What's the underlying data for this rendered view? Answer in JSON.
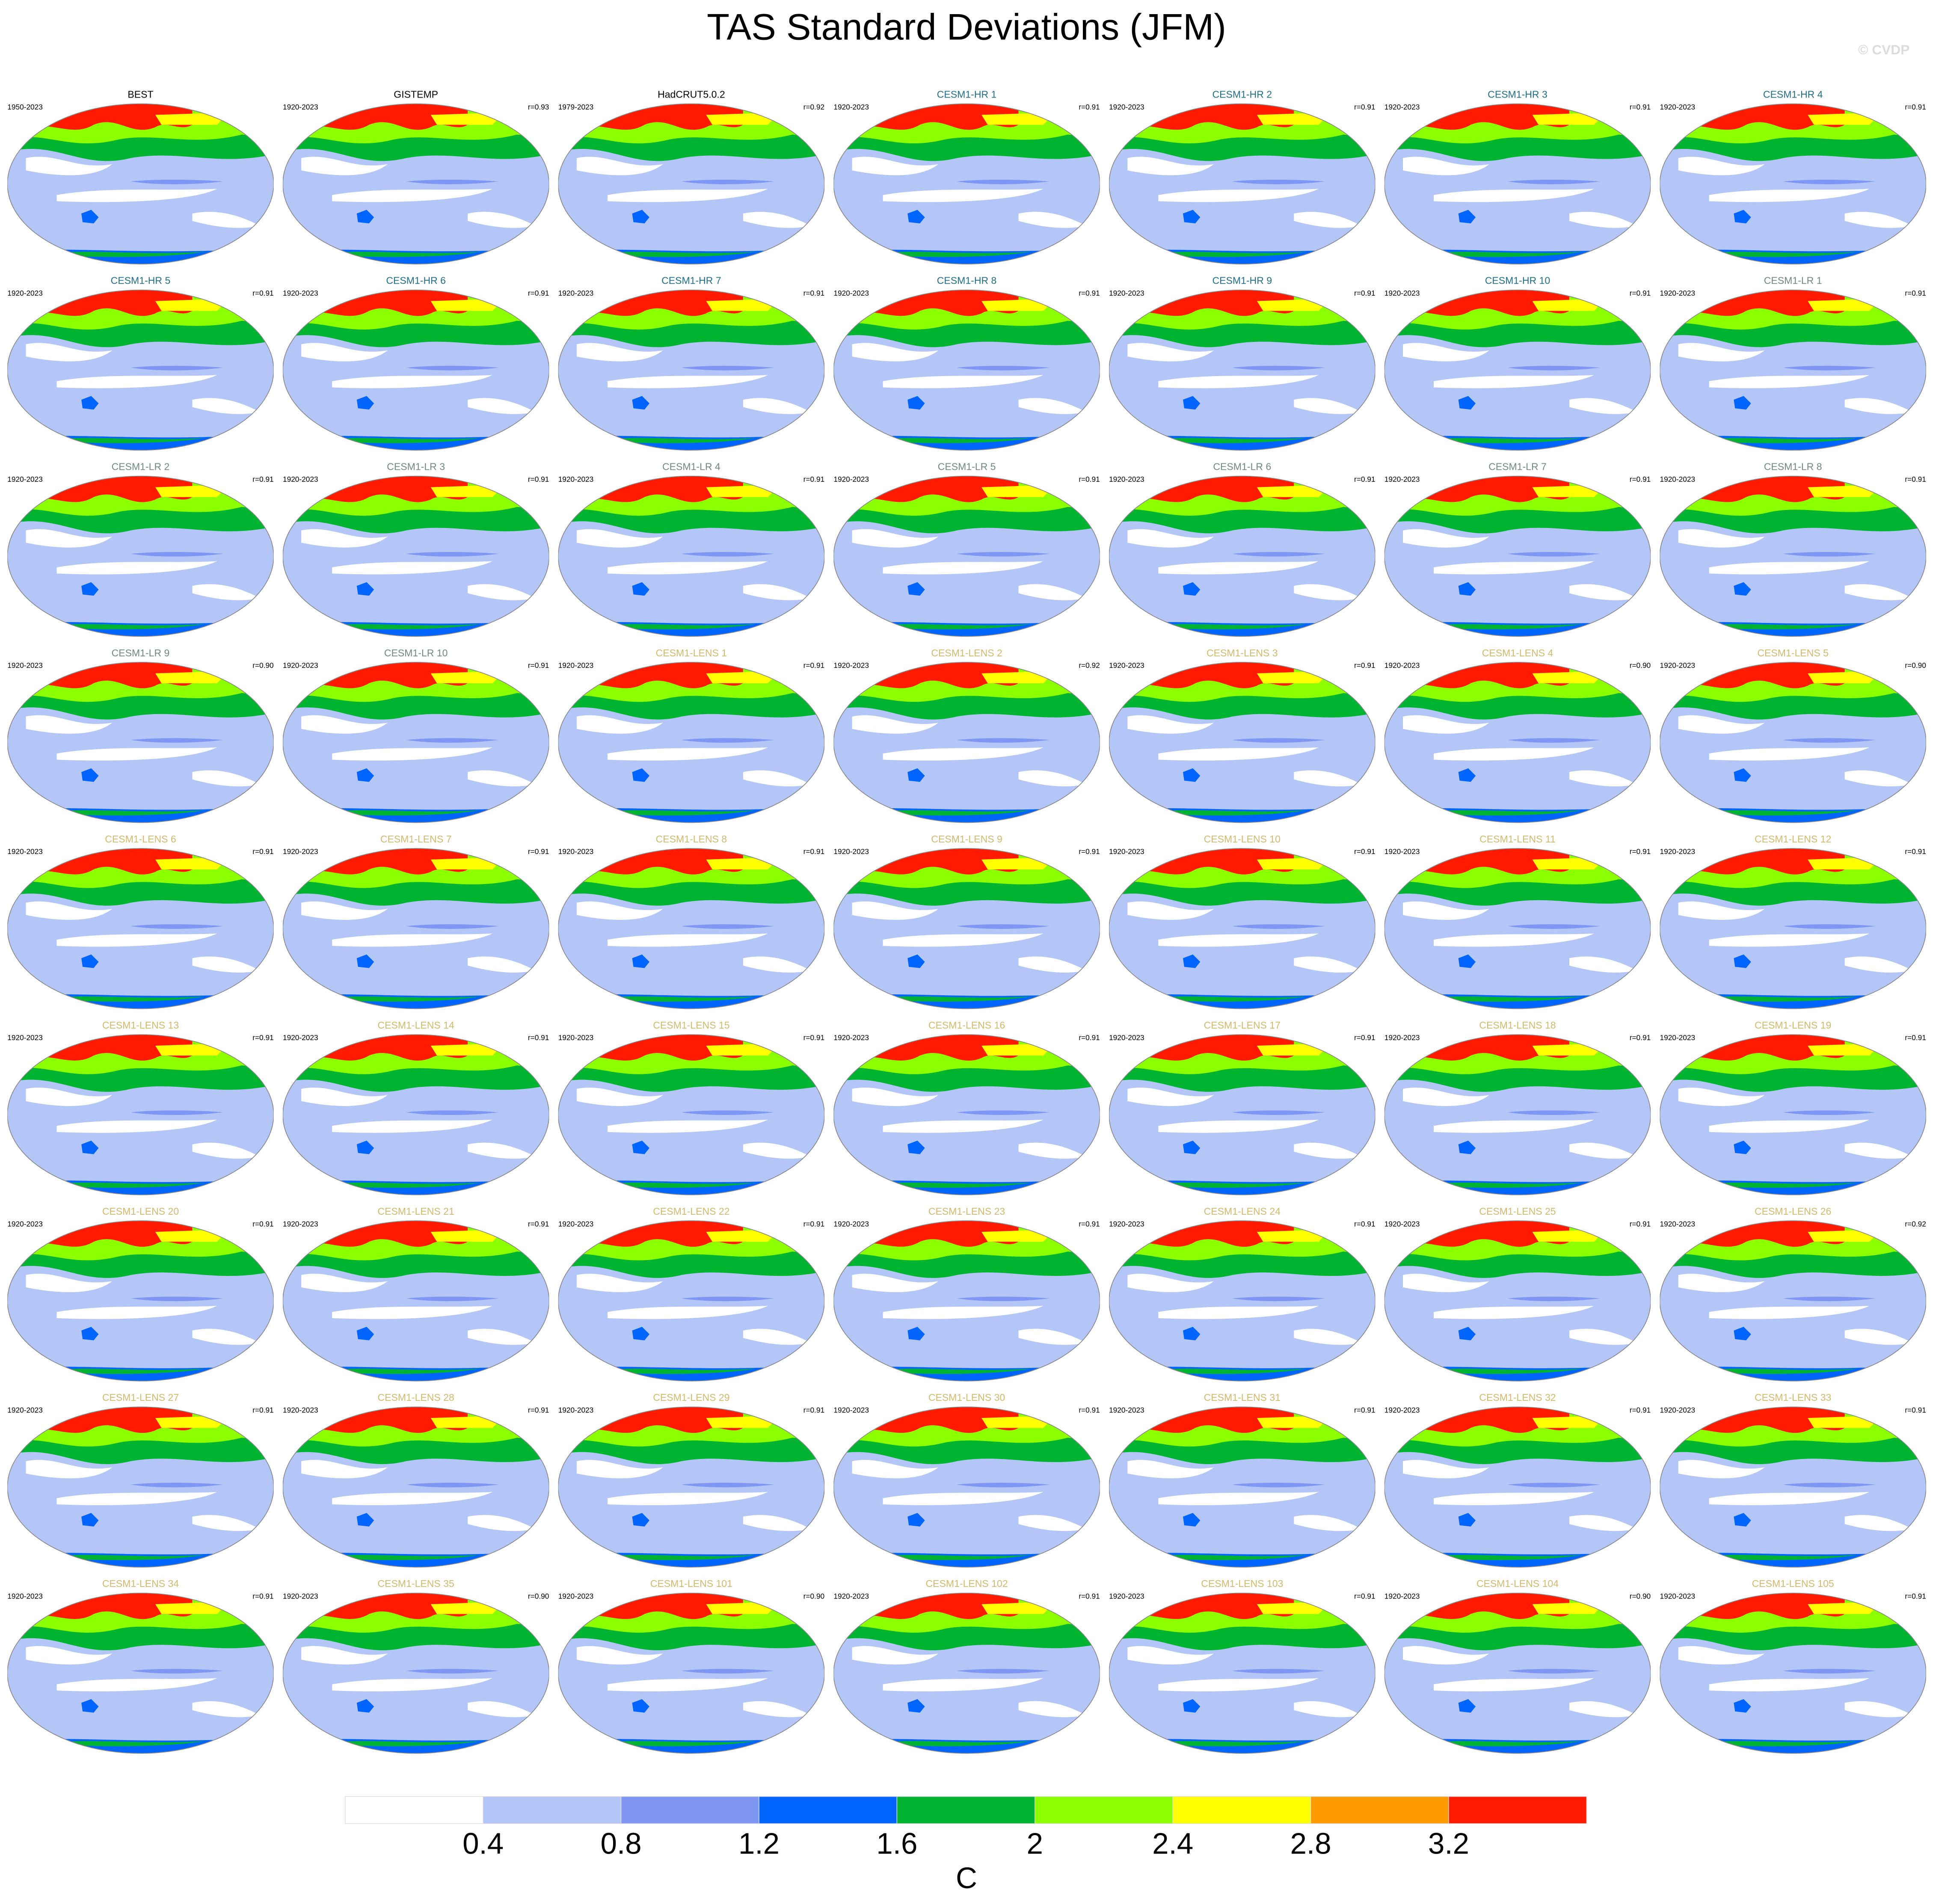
{
  "title": "TAS Standard Deviations (JFM)",
  "credit": "© CVDP",
  "panels": [
    {
      "name": "BEST",
      "years": "1950-2023",
      "color": "#000000"
    },
    {
      "name": "GISTEMP",
      "years": "1920-2023",
      "r": "r=0.93",
      "color": "#000000"
    },
    {
      "name": "HadCRUT5.0.2",
      "years": "1979-2023",
      "r": "r=0.92",
      "color": "#000000"
    },
    {
      "name": "CESM1-HR 1",
      "years": "1920-2023",
      "r": "r=0.91",
      "color": "#1f6f8b"
    },
    {
      "name": "CESM1-HR 2",
      "years": "1920-2023",
      "r": "r=0.91",
      "color": "#1f6f8b"
    },
    {
      "name": "CESM1-HR 3",
      "years": "1920-2023",
      "r": "r=0.91",
      "color": "#1f6f8b"
    },
    {
      "name": "CESM1-HR 4",
      "years": "1920-2023",
      "r": "r=0.91",
      "color": "#1f6f8b"
    },
    {
      "name": "CESM1-HR 5",
      "years": "1920-2023",
      "r": "r=0.91",
      "color": "#1f6f8b"
    },
    {
      "name": "CESM1-HR 6",
      "years": "1920-2023",
      "r": "r=0.91",
      "color": "#1f6f8b"
    },
    {
      "name": "CESM1-HR 7",
      "years": "1920-2023",
      "r": "r=0.91",
      "color": "#1f6f8b"
    },
    {
      "name": "CESM1-HR 8",
      "years": "1920-2023",
      "r": "r=0.91",
      "color": "#1f6f8b"
    },
    {
      "name": "CESM1-HR 9",
      "years": "1920-2023",
      "r": "r=0.91",
      "color": "#1f6f8b"
    },
    {
      "name": "CESM1-HR 10",
      "years": "1920-2023",
      "r": "r=0.91",
      "color": "#1f6f8b"
    },
    {
      "name": "CESM1-LR 1",
      "years": "1920-2023",
      "r": "r=0.91",
      "color": "#6f8a7c"
    },
    {
      "name": "CESM1-LR 2",
      "years": "1920-2023",
      "r": "r=0.91",
      "color": "#6f8a7c"
    },
    {
      "name": "CESM1-LR 3",
      "years": "1920-2023",
      "r": "r=0.91",
      "color": "#6f8a7c"
    },
    {
      "name": "CESM1-LR 4",
      "years": "1920-2023",
      "r": "r=0.91",
      "color": "#6f8a7c"
    },
    {
      "name": "CESM1-LR 5",
      "years": "1920-2023",
      "r": "r=0.91",
      "color": "#6f8a7c"
    },
    {
      "name": "CESM1-LR 6",
      "years": "1920-2023",
      "r": "r=0.91",
      "color": "#6f8a7c"
    },
    {
      "name": "CESM1-LR 7",
      "years": "1920-2023",
      "r": "r=0.91",
      "color": "#6f8a7c"
    },
    {
      "name": "CESM1-LR 8",
      "years": "1920-2023",
      "r": "r=0.91",
      "color": "#6f8a7c"
    },
    {
      "name": "CESM1-LR 9",
      "years": "1920-2023",
      "r": "r=0.90",
      "color": "#6f8a7c"
    },
    {
      "name": "CESM1-LR 10",
      "years": "1920-2023",
      "r": "r=0.91",
      "color": "#6f8a7c"
    },
    {
      "name": "CESM1-LENS 1",
      "years": "1920-2023",
      "r": "r=0.91",
      "color": "#d4b96a"
    },
    {
      "name": "CESM1-LENS 2",
      "years": "1920-2023",
      "r": "r=0.92",
      "color": "#d4b96a"
    },
    {
      "name": "CESM1-LENS 3",
      "years": "1920-2023",
      "r": "r=0.91",
      "color": "#d4b96a"
    },
    {
      "name": "CESM1-LENS 4",
      "years": "1920-2023",
      "r": "r=0.90",
      "color": "#d4b96a"
    },
    {
      "name": "CESM1-LENS 5",
      "years": "1920-2023",
      "r": "r=0.90",
      "color": "#d4b96a"
    },
    {
      "name": "CESM1-LENS 6",
      "years": "1920-2023",
      "r": "r=0.91",
      "color": "#d4b96a"
    },
    {
      "name": "CESM1-LENS 7",
      "years": "1920-2023",
      "r": "r=0.91",
      "color": "#d4b96a"
    },
    {
      "name": "CESM1-LENS 8",
      "years": "1920-2023",
      "r": "r=0.91",
      "color": "#d4b96a"
    },
    {
      "name": "CESM1-LENS 9",
      "years": "1920-2023",
      "r": "r=0.91",
      "color": "#d4b96a"
    },
    {
      "name": "CESM1-LENS 10",
      "years": "1920-2023",
      "r": "r=0.91",
      "color": "#d4b96a"
    },
    {
      "name": "CESM1-LENS 11",
      "years": "1920-2023",
      "r": "r=0.91",
      "color": "#d4b96a"
    },
    {
      "name": "CESM1-LENS 12",
      "years": "1920-2023",
      "r": "r=0.91",
      "color": "#d4b96a"
    },
    {
      "name": "CESM1-LENS 13",
      "years": "1920-2023",
      "r": "r=0.91",
      "color": "#d4b96a"
    },
    {
      "name": "CESM1-LENS 14",
      "years": "1920-2023",
      "r": "r=0.91",
      "color": "#d4b96a"
    },
    {
      "name": "CESM1-LENS 15",
      "years": "1920-2023",
      "r": "r=0.91",
      "color": "#d4b96a"
    },
    {
      "name": "CESM1-LENS 16",
      "years": "1920-2023",
      "r": "r=0.91",
      "color": "#d4b96a"
    },
    {
      "name": "CESM1-LENS 17",
      "years": "1920-2023",
      "r": "r=0.91",
      "color": "#d4b96a"
    },
    {
      "name": "CESM1-LENS 18",
      "years": "1920-2023",
      "r": "r=0.91",
      "color": "#d4b96a"
    },
    {
      "name": "CESM1-LENS 19",
      "years": "1920-2023",
      "r": "r=0.91",
      "color": "#d4b96a"
    },
    {
      "name": "CESM1-LENS 20",
      "years": "1920-2023",
      "r": "r=0.91",
      "color": "#d4b96a"
    },
    {
      "name": "CESM1-LENS 21",
      "years": "1920-2023",
      "r": "r=0.91",
      "color": "#d4b96a"
    },
    {
      "name": "CESM1-LENS 22",
      "years": "1920-2023",
      "r": "r=0.91",
      "color": "#d4b96a"
    },
    {
      "name": "CESM1-LENS 23",
      "years": "1920-2023",
      "r": "r=0.91",
      "color": "#d4b96a"
    },
    {
      "name": "CESM1-LENS 24",
      "years": "1920-2023",
      "r": "r=0.91",
      "color": "#d4b96a"
    },
    {
      "name": "CESM1-LENS 25",
      "years": "1920-2023",
      "r": "r=0.91",
      "color": "#d4b96a"
    },
    {
      "name": "CESM1-LENS 26",
      "years": "1920-2023",
      "r": "r=0.92",
      "color": "#d4b96a"
    },
    {
      "name": "CESM1-LENS 27",
      "years": "1920-2023",
      "r": "r=0.91",
      "color": "#d4b96a"
    },
    {
      "name": "CESM1-LENS 28",
      "years": "1920-2023",
      "r": "r=0.91",
      "color": "#d4b96a"
    },
    {
      "name": "CESM1-LENS 29",
      "years": "1920-2023",
      "r": "r=0.91",
      "color": "#d4b96a"
    },
    {
      "name": "CESM1-LENS 30",
      "years": "1920-2023",
      "r": "r=0.91",
      "color": "#d4b96a"
    },
    {
      "name": "CESM1-LENS 31",
      "years": "1920-2023",
      "r": "r=0.91",
      "color": "#d4b96a"
    },
    {
      "name": "CESM1-LENS 32",
      "years": "1920-2023",
      "r": "r=0.91",
      "color": "#d4b96a"
    },
    {
      "name": "CESM1-LENS 33",
      "years": "1920-2023",
      "r": "r=0.91",
      "color": "#d4b96a"
    },
    {
      "name": "CESM1-LENS 34",
      "years": "1920-2023",
      "r": "r=0.91",
      "color": "#d4b96a"
    },
    {
      "name": "CESM1-LENS 35",
      "years": "1920-2023",
      "r": "r=0.90",
      "color": "#d4b96a"
    },
    {
      "name": "CESM1-LENS 101",
      "years": "1920-2023",
      "r": "r=0.90",
      "color": "#d4b96a"
    },
    {
      "name": "CESM1-LENS 102",
      "years": "1920-2023",
      "r": "r=0.91",
      "color": "#d4b96a"
    },
    {
      "name": "CESM1-LENS 103",
      "years": "1920-2023",
      "r": "r=0.91",
      "color": "#d4b96a"
    },
    {
      "name": "CESM1-LENS 104",
      "years": "1920-2023",
      "r": "r=0.90",
      "color": "#d4b96a"
    },
    {
      "name": "CESM1-LENS 105",
      "years": "1920-2023",
      "r": "r=0.91",
      "color": "#d4b96a"
    }
  ],
  "colorbar": {
    "levels": [
      0.4,
      0.8,
      1.2,
      1.6,
      2,
      2.4,
      2.8,
      3.2
    ],
    "colors": [
      "#ffffff",
      "#b3c6f7",
      "#8096f5",
      "#0064ff",
      "#00b432",
      "#8cff00",
      "#ffff00",
      "#ff9900",
      "#ff1a00"
    ],
    "unit": "C"
  }
}
